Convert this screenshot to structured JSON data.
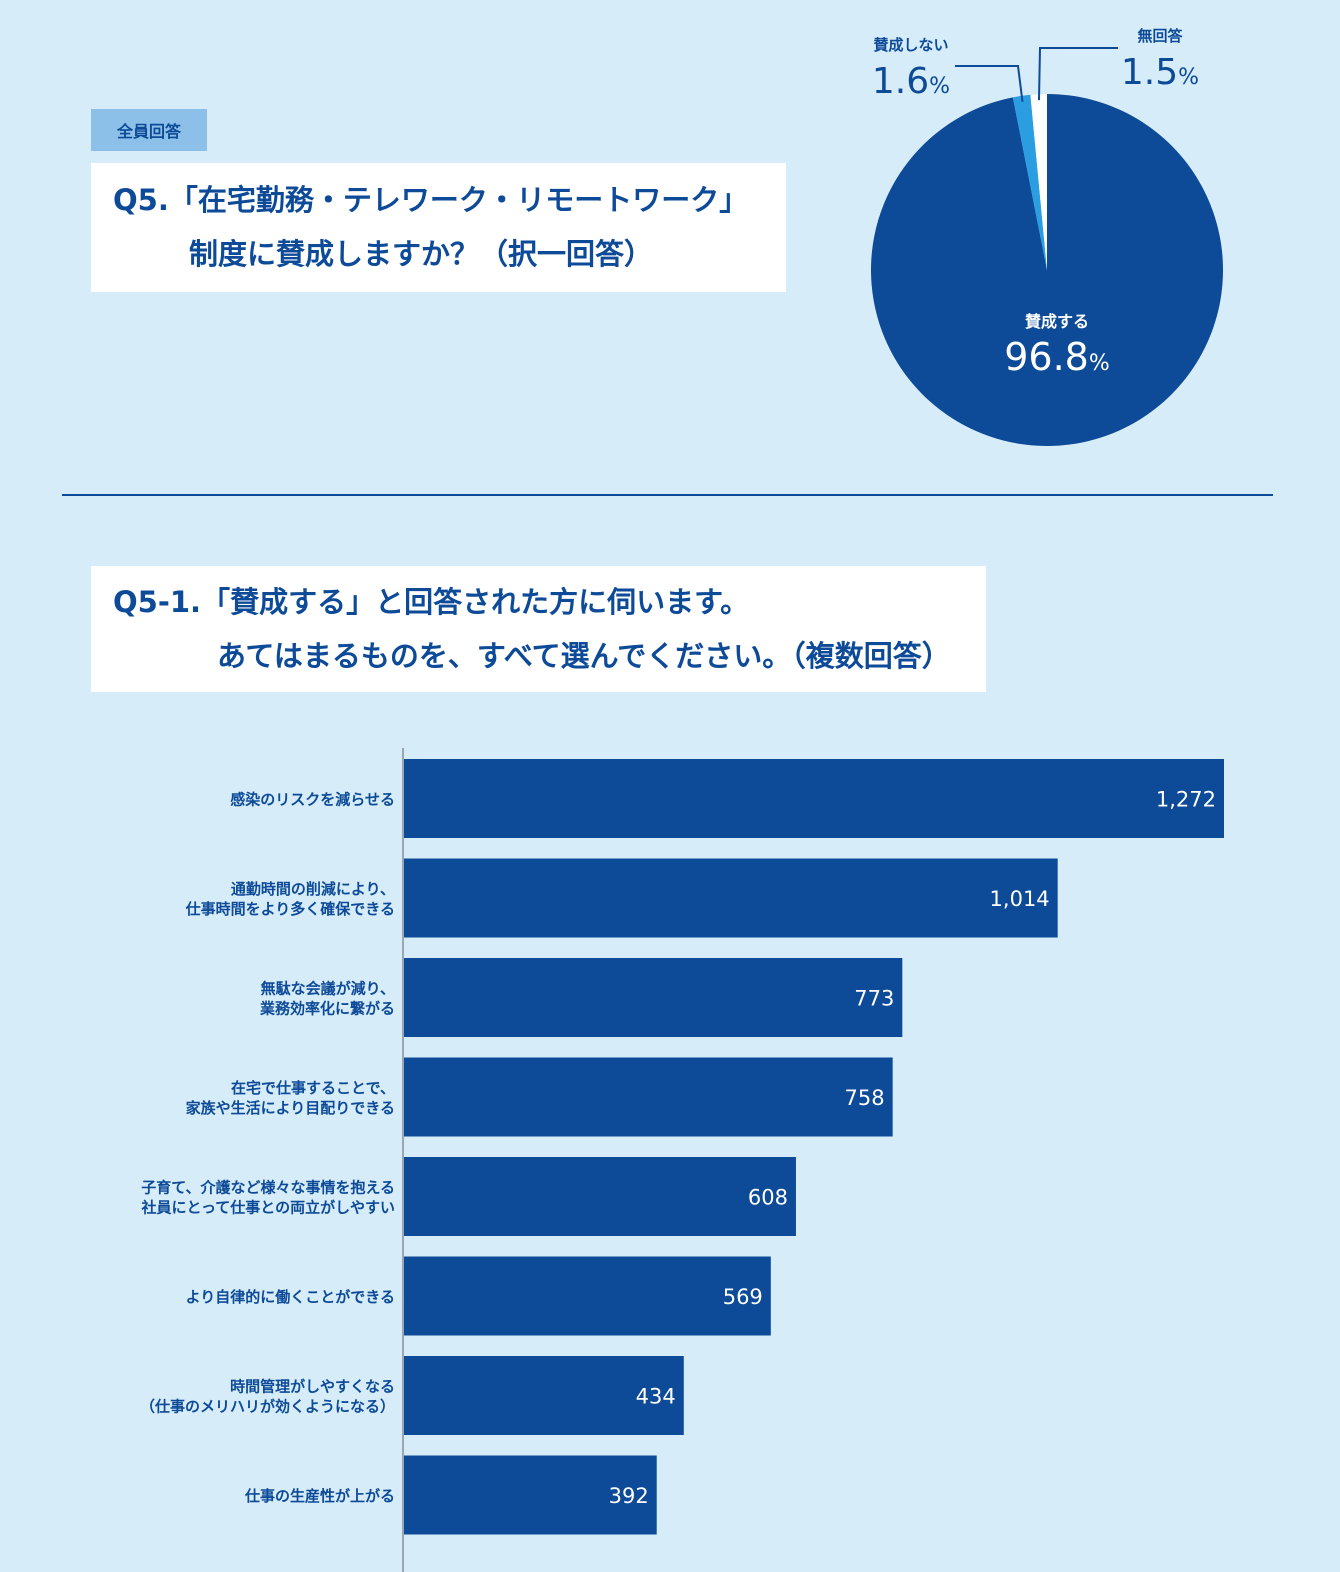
{
  "tag": "全員回答",
  "q5": {
    "number": "Q5.",
    "line1": "「在宅勤務・テレワーク・リモートワーク」",
    "line2": "制度に賛成しますか？（択一回答）"
  },
  "q5_1": {
    "number": "Q5-1.",
    "line1": "「賛成する」と回答された方に伺います。",
    "line2": "あてはまるものを、すべて選んでください。（複数回答）"
  },
  "colors": {
    "background": "#d6ecf8",
    "primary": "#0d4a98",
    "secondary": "#2a9ee0",
    "white": "#ffffff",
    "tag": "#8cc0e8"
  },
  "chart_data": [
    {
      "type": "pie",
      "title": "",
      "unit": "%",
      "slices": [
        {
          "label": "賛成する",
          "value": 96.8,
          "display": "96.8",
          "color": "#0d4a98"
        },
        {
          "label": "賛成しない",
          "value": 1.6,
          "display": "1.6",
          "color": "#2a9ee0"
        },
        {
          "label": "無回答",
          "value": 1.5,
          "display": "1.5",
          "color": "#ffffff"
        }
      ]
    },
    {
      "type": "bar",
      "orientation": "horizontal",
      "title": "",
      "xlim": [
        0,
        1300
      ],
      "grid": false,
      "categories": [
        [
          "感染のリスクを減らせる"
        ],
        [
          "通勤時間の削減により、",
          "仕事時間をより多く確保できる"
        ],
        [
          "無駄な会議が減り、",
          "業務効率化に繋がる"
        ],
        [
          "在宅で仕事することで、",
          "家族や生活により目配りできる"
        ],
        [
          "子育て、介護など様々な事情を抱える",
          "社員にとって仕事との両立がしやすい"
        ],
        [
          "より自律的に働くことができる"
        ],
        [
          "時間管理がしやすくなる",
          "（仕事のメリハリが効くようになる）"
        ],
        [
          "仕事の生産性が上がる"
        ]
      ],
      "values": [
        1272,
        1014,
        773,
        758,
        608,
        569,
        434,
        392
      ],
      "value_labels": [
        "1,272",
        "1,014",
        "773",
        "758",
        "608",
        "569",
        "434",
        "392"
      ]
    }
  ]
}
